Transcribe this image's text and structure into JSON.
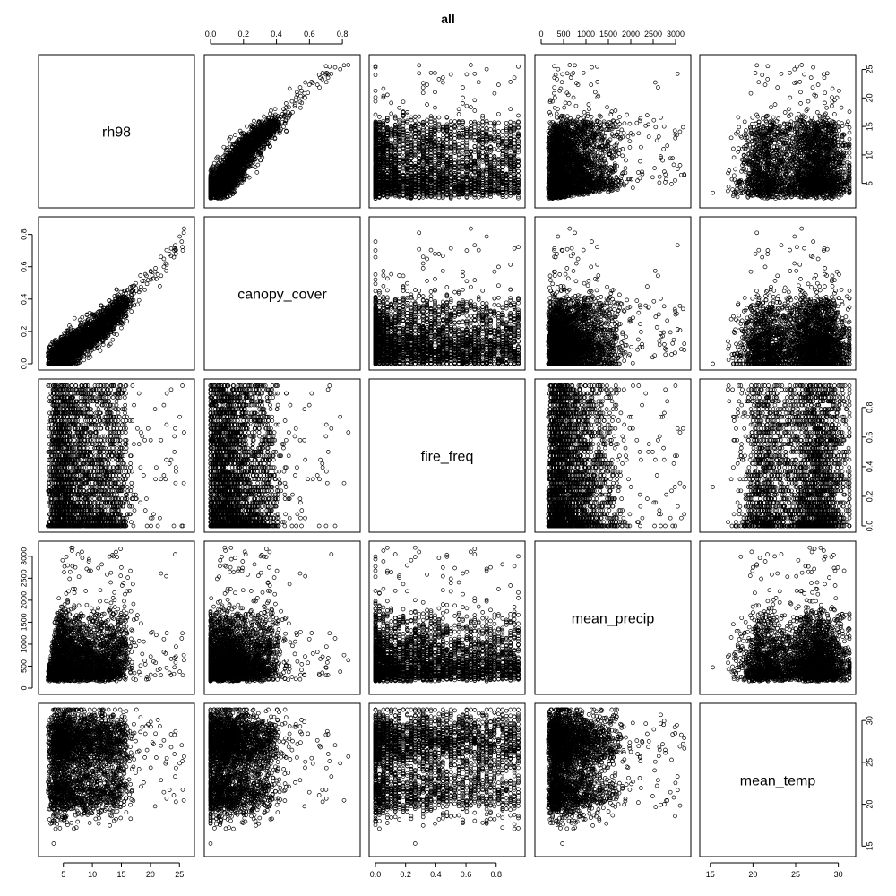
{
  "chart_data": {
    "type": "scatter",
    "title": "all",
    "variables": [
      "rh98",
      "canopy_cover",
      "fire_freq",
      "mean_precip",
      "mean_temp"
    ],
    "ranges": {
      "rh98": [
        1.8,
        26.5
      ],
      "canopy_cover": [
        0.0,
        0.87
      ],
      "fire_freq": [
        0.0,
        0.95
      ],
      "mean_precip": [
        0,
        3200
      ],
      "mean_temp": [
        14.5,
        31.3
      ]
    },
    "ticks": {
      "rh98": [
        "5",
        "10",
        "15",
        "20",
        "25"
      ],
      "canopy_cover": [
        "0.0",
        "0.2",
        "0.4",
        "0.6",
        "0.8"
      ],
      "fire_freq": [
        "0.0",
        "0.2",
        "0.4",
        "0.6",
        "0.8"
      ],
      "mean_precip": [
        "0",
        "500",
        "1000",
        "1500",
        "2000",
        "2500",
        "3000"
      ],
      "mean_temp": [
        "15",
        "20",
        "25",
        "30"
      ]
    },
    "layout": "pairs-matrix",
    "grid": false,
    "legend": "none",
    "n_points": 3000,
    "fire_freq_levels": [
      0.0,
      0.026,
      0.053,
      0.079,
      0.105,
      0.132,
      0.158,
      0.184,
      0.211,
      0.237,
      0.263,
      0.289,
      0.316,
      0.342,
      0.368,
      0.395,
      0.421,
      0.447,
      0.474,
      0.5,
      0.526,
      0.553,
      0.579,
      0.605,
      0.632,
      0.658,
      0.684,
      0.711,
      0.737,
      0.763,
      0.789,
      0.816,
      0.842,
      0.868,
      0.895,
      0.921,
      0.947
    ]
  }
}
